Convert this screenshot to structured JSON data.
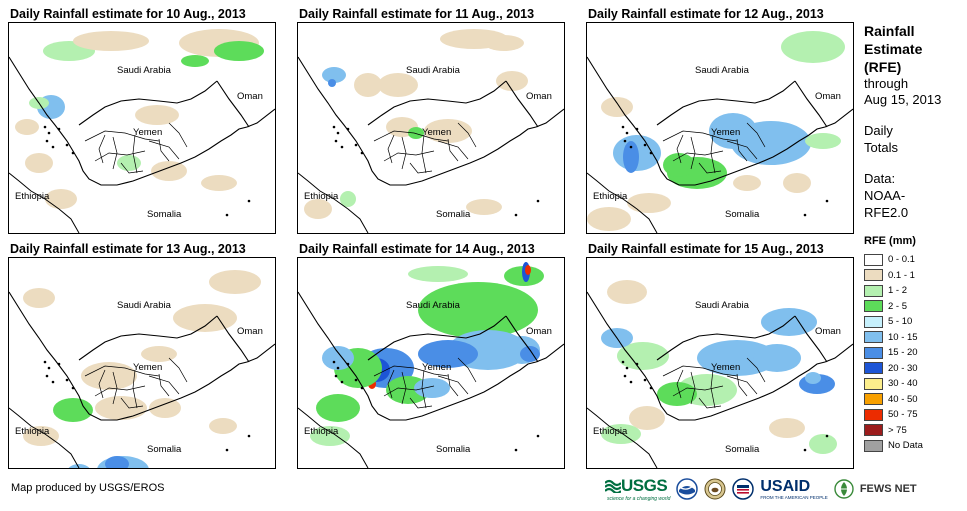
{
  "panels": [
    {
      "title": "Daily Rainfall estimate for 10 Aug., 2013"
    },
    {
      "title": "Daily Rainfall estimate for 11 Aug., 2013"
    },
    {
      "title": "Daily Rainfall estimate for 12 Aug., 2013"
    },
    {
      "title": "Daily Rainfall estimate for 13 Aug., 2013"
    },
    {
      "title": "Daily Rainfall estimate for 14 Aug., 2013"
    },
    {
      "title": "Daily Rainfall estimate for 15 Aug., 2013"
    }
  ],
  "countries": {
    "saudi": "Saudi Arabia",
    "oman": "Oman",
    "yemen": "Yemen",
    "ethiopia": "Ethiopia",
    "somalia": "Somalia"
  },
  "sidebar": {
    "title": "Rainfall Estimate (RFE)",
    "subtitle_1": "through",
    "subtitle_2": "Aug 15, 2013",
    "daily_1": "Daily",
    "daily_2": "Totals",
    "data_1": "Data:",
    "data_2": "NOAA-",
    "data_3": "RFE2.0",
    "legend_title": "RFE (mm)"
  },
  "legend": [
    {
      "label": "0 - 0.1",
      "color": "#ffffff"
    },
    {
      "label": "0.1 - 1",
      "color": "#ecdcc0"
    },
    {
      "label": "1 - 2",
      "color": "#b4f0b0"
    },
    {
      "label": "2 - 5",
      "color": "#5ddc5a"
    },
    {
      "label": "5 - 10",
      "color": "#c6f0fc"
    },
    {
      "label": "10 - 15",
      "color": "#80bfee"
    },
    {
      "label": "15 - 20",
      "color": "#4a8ee6"
    },
    {
      "label": "20 - 30",
      "color": "#1d55d6"
    },
    {
      "label": "30 - 40",
      "color": "#fcee8c"
    },
    {
      "label": "40 - 50",
      "color": "#f8a000"
    },
    {
      "label": "50 - 75",
      "color": "#ec2c00"
    },
    {
      "label": "> 75",
      "color": "#9c1c1c"
    },
    {
      "label": "No Data",
      "color": "#a0a0a0"
    }
  ],
  "credit": "Map produced by USGS/EROS",
  "logos": {
    "usgs": "USGS",
    "usgs_tag": "science for a changing world",
    "usaid": "USAID",
    "usaid_tag": "FROM THE AMERICAN PEOPLE",
    "fewsnet": "FEWS NET"
  },
  "icons": [
    "noaa-logo-icon",
    "doi-seal-icon",
    "usaid-seal-icon",
    "fewsnet-icon"
  ]
}
